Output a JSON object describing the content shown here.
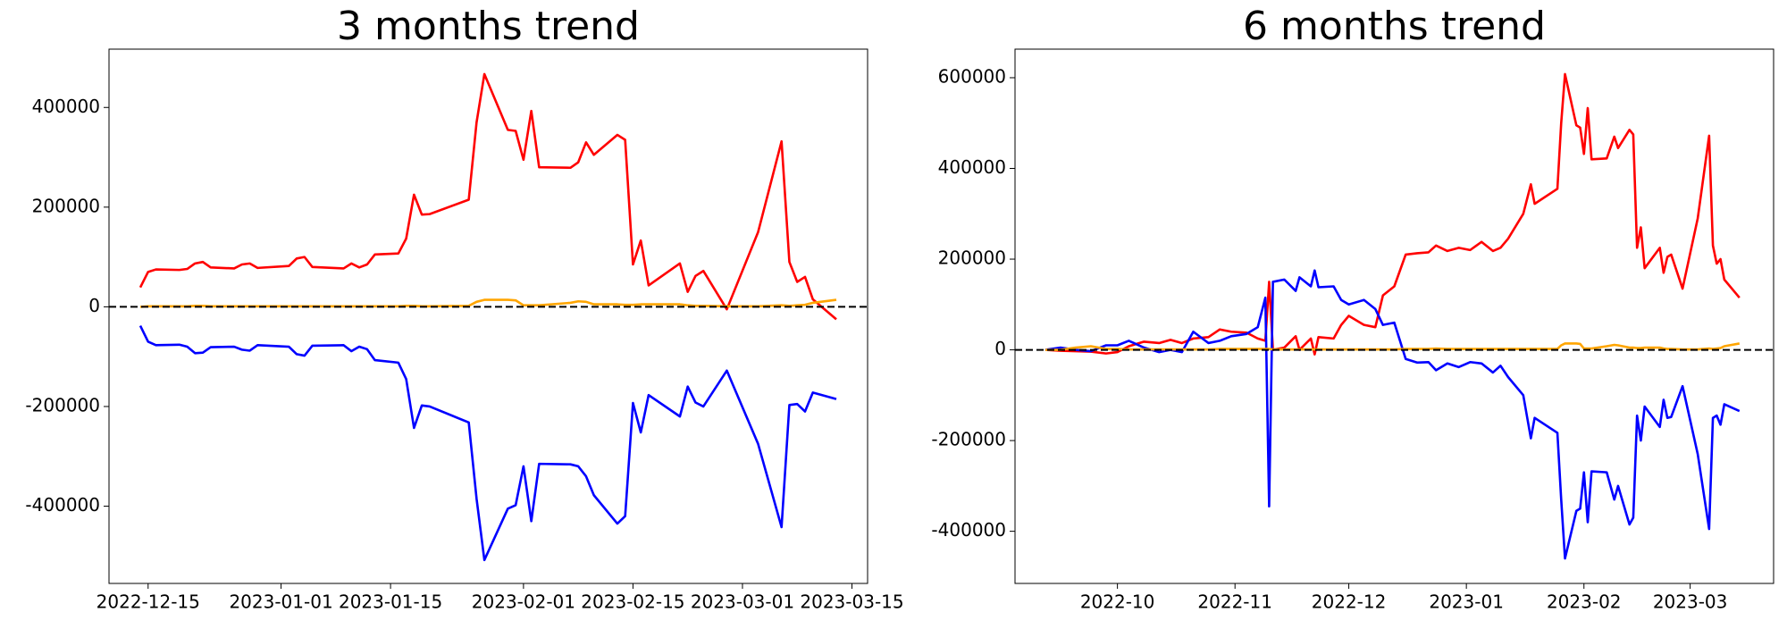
{
  "chart_data": [
    {
      "type": "line",
      "title": "3 months trend",
      "x": [
        "2022-12-14",
        "2022-12-15",
        "2022-12-16",
        "2022-12-19",
        "2022-12-20",
        "2022-12-21",
        "2022-12-22",
        "2022-12-23",
        "2022-12-26",
        "2022-12-27",
        "2022-12-28",
        "2022-12-29",
        "2023-01-02",
        "2023-01-03",
        "2023-01-04",
        "2023-01-05",
        "2023-01-09",
        "2023-01-10",
        "2023-01-11",
        "2023-01-12",
        "2023-01-13",
        "2023-01-16",
        "2023-01-17",
        "2023-01-18",
        "2023-01-19",
        "2023-01-20",
        "2023-01-25",
        "2023-01-26",
        "2023-01-27",
        "2023-01-30",
        "2023-01-31",
        "2023-02-01",
        "2023-02-02",
        "2023-02-03",
        "2023-02-07",
        "2023-02-08",
        "2023-02-09",
        "2023-02-10",
        "2023-02-13",
        "2023-02-14",
        "2023-02-15",
        "2023-02-16",
        "2023-02-17",
        "2023-02-21",
        "2023-02-22",
        "2023-02-23",
        "2023-02-24",
        "2023-02-27",
        "2023-03-03",
        "2023-03-06",
        "2023-03-07",
        "2023-03-08",
        "2023-03-09",
        "2023-03-10",
        "2023-03-13"
      ],
      "series": [
        {
          "color": "red",
          "values": [
            39000,
            70000,
            75000,
            74000,
            76000,
            87000,
            90000,
            79000,
            77000,
            85000,
            87000,
            78000,
            82000,
            97000,
            100000,
            80000,
            77000,
            87000,
            79000,
            85000,
            105000,
            107000,
            137000,
            225000,
            185000,
            186000,
            215000,
            370000,
            467000,
            355000,
            353000,
            295000,
            393000,
            280000,
            279000,
            290000,
            330000,
            305000,
            345000,
            335000,
            85000,
            133000,
            43000,
            87000,
            30000,
            62000,
            72000,
            -5000,
            150000,
            332000,
            90000,
            50000,
            60000,
            15000,
            -25000
          ]
        },
        {
          "color": "blue",
          "values": [
            -38000,
            -70000,
            -77000,
            -76000,
            -80000,
            -93000,
            -92000,
            -81000,
            -80000,
            -86000,
            -88000,
            -77000,
            -80000,
            -95000,
            -98000,
            -78000,
            -77000,
            -89000,
            -80000,
            -85000,
            -107000,
            -112000,
            -145000,
            -243000,
            -198000,
            -200000,
            -232000,
            -385000,
            -508000,
            -405000,
            -398000,
            -320000,
            -430000,
            -315000,
            -316000,
            -320000,
            -340000,
            -378000,
            -435000,
            -420000,
            -193000,
            -252000,
            -177000,
            -220000,
            -160000,
            -192000,
            -200000,
            -128000,
            -275000,
            -442000,
            -197000,
            -195000,
            -210000,
            -172000,
            -185000
          ]
        },
        {
          "color": "orange",
          "values": [
            0,
            1000,
            1000,
            1000,
            1000,
            2000,
            2000,
            1000,
            1000,
            1000,
            1000,
            1000,
            1000,
            1000,
            1000,
            1000,
            1000,
            1000,
            1000,
            1000,
            1000,
            1000,
            2000,
            2000,
            1000,
            1000,
            2000,
            10000,
            14000,
            14000,
            13000,
            3000,
            3000,
            3000,
            8000,
            11000,
            10000,
            5000,
            5000,
            4000,
            4000,
            5000,
            5000,
            5000,
            3000,
            2000,
            2000,
            1000,
            1000,
            3000,
            2000,
            3000,
            4000,
            8000,
            14000
          ]
        }
      ],
      "xlim": [
        "2022-12-10",
        "2023-03-17"
      ],
      "xticks": [
        "2022-12-15",
        "2023-01-01",
        "2023-01-15",
        "2023-02-01",
        "2023-02-15",
        "2023-03-01",
        "2023-03-15"
      ],
      "ylim": [
        -555000,
        517000
      ],
      "yticks": [
        -400000,
        -200000,
        0,
        200000,
        400000
      ],
      "hline": 0,
      "hline_color": "#000000",
      "grid": false
    },
    {
      "type": "line",
      "title": "6 months trend",
      "x": [
        "2022-09-12",
        "2022-09-16",
        "2022-09-20",
        "2022-09-24",
        "2022-09-28",
        "2022-10-01",
        "2022-10-04",
        "2022-10-08",
        "2022-10-12",
        "2022-10-15",
        "2022-10-18",
        "2022-10-21",
        "2022-10-25",
        "2022-10-28",
        "2022-10-31",
        "2022-11-04",
        "2022-11-07",
        "2022-11-09",
        "2022-11-10",
        "2022-11-11",
        "2022-11-14",
        "2022-11-17",
        "2022-11-18",
        "2022-11-21",
        "2022-11-22",
        "2022-11-23",
        "2022-11-27",
        "2022-11-29",
        "2022-12-01",
        "2022-12-05",
        "2022-12-08",
        "2022-12-10",
        "2022-12-13",
        "2022-12-16",
        "2022-12-19",
        "2022-12-22",
        "2022-12-24",
        "2022-12-27",
        "2022-12-30",
        "2023-01-02",
        "2023-01-05",
        "2023-01-08",
        "2023-01-10",
        "2023-01-12",
        "2023-01-16",
        "2023-01-18",
        "2023-01-19",
        "2023-01-25",
        "2023-01-26",
        "2023-01-27",
        "2023-01-30",
        "2023-01-31",
        "2023-02-01",
        "2023-02-02",
        "2023-02-03",
        "2023-02-07",
        "2023-02-09",
        "2023-02-10",
        "2023-02-13",
        "2023-02-14",
        "2023-02-15",
        "2023-02-16",
        "2023-02-17",
        "2023-02-21",
        "2023-02-22",
        "2023-02-23",
        "2023-02-24",
        "2023-02-27",
        "2023-03-03",
        "2023-03-06",
        "2023-03-07",
        "2023-03-08",
        "2023-03-09",
        "2023-03-10",
        "2023-03-14"
      ],
      "series": [
        {
          "color": "red",
          "values": [
            0,
            -2000,
            -3000,
            -4000,
            -8000,
            -5000,
            8000,
            18000,
            15000,
            22000,
            15000,
            25000,
            28000,
            45000,
            40000,
            38000,
            25000,
            20000,
            150000,
            0,
            5000,
            30000,
            0,
            25000,
            -10000,
            28000,
            25000,
            55000,
            75000,
            55000,
            50000,
            120000,
            140000,
            210000,
            213000,
            215000,
            230000,
            218000,
            225000,
            220000,
            238000,
            218000,
            225000,
            245000,
            300000,
            365000,
            322000,
            355000,
            500000,
            608000,
            495000,
            490000,
            432000,
            533000,
            420000,
            422000,
            470000,
            445000,
            485000,
            475000,
            225000,
            270000,
            180000,
            225000,
            170000,
            205000,
            210000,
            135000,
            290000,
            472000,
            230000,
            190000,
            200000,
            155000,
            115000
          ]
        },
        {
          "color": "blue",
          "values": [
            0,
            5000,
            0,
            -3000,
            10000,
            10000,
            20000,
            5000,
            -5000,
            0,
            -5000,
            40000,
            15000,
            20000,
            30000,
            35000,
            50000,
            115000,
            -345000,
            150000,
            155000,
            130000,
            160000,
            140000,
            175000,
            138000,
            140000,
            110000,
            100000,
            110000,
            90000,
            55000,
            60000,
            -20000,
            -28000,
            -27000,
            -45000,
            -30000,
            -38000,
            -27000,
            -30000,
            -50000,
            -35000,
            -60000,
            -100000,
            -195000,
            -150000,
            -183000,
            -330000,
            -460000,
            -355000,
            -350000,
            -270000,
            -380000,
            -268000,
            -270000,
            -330000,
            -300000,
            -385000,
            -370000,
            -145000,
            -200000,
            -125000,
            -170000,
            -110000,
            -150000,
            -148000,
            -80000,
            -230000,
            -395000,
            -150000,
            -145000,
            -165000,
            -120000,
            -135000
          ]
        },
        {
          "color": "orange",
          "values": [
            0,
            0,
            5000,
            8000,
            2000,
            2000,
            1000,
            1000,
            1000,
            1000,
            1000,
            1000,
            1000,
            2000,
            2000,
            2000,
            2000,
            2000,
            2000,
            1000,
            1000,
            1000,
            1000,
            1000,
            1000,
            1000,
            1000,
            1000,
            1000,
            1000,
            1000,
            1000,
            1000,
            2000,
            2000,
            2000,
            3000,
            2000,
            2000,
            2000,
            2000,
            2000,
            2000,
            2000,
            2000,
            2000,
            2000,
            2000,
            10000,
            14000,
            14000,
            13000,
            3000,
            3000,
            3000,
            8000,
            11000,
            10000,
            5000,
            5000,
            4000,
            4000,
            5000,
            5000,
            3000,
            2000,
            2000,
            1000,
            1000,
            3000,
            2000,
            3000,
            4000,
            8000,
            14000
          ]
        }
      ],
      "xlim": [
        "2022-09-04",
        "2023-03-23"
      ],
      "xticks": [
        "2022-10",
        "2022-11",
        "2022-12",
        "2023-01",
        "2023-02",
        "2023-03"
      ],
      "ylim": [
        -515000,
        663000
      ],
      "yticks": [
        -400000,
        -200000,
        0,
        200000,
        400000,
        600000
      ],
      "hline": 0,
      "hline_color": "#000000",
      "grid": false
    }
  ]
}
